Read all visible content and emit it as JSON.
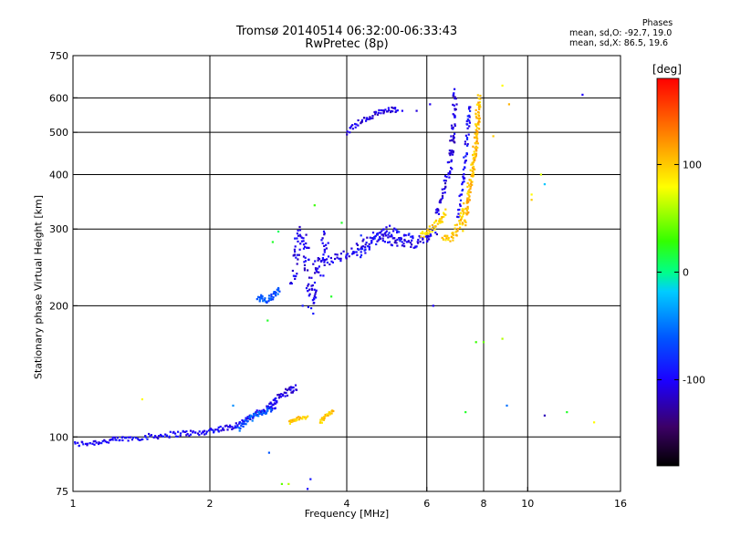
{
  "title_line1": "Tromsø 20140514 06:32:00-06:33:43",
  "title_line2": "RwPretec (8p)",
  "phase_info": {
    "heading": "Phases",
    "line_o": "mean, sd,O: -92.7, 19.0",
    "line_x": "mean, sd,X:  86.5, 19.6"
  },
  "colorbar": {
    "label": "[deg]",
    "ticks": [
      "100",
      "0",
      "-100"
    ],
    "tick_values": [
      100,
      0,
      -100
    ],
    "range": [
      -180,
      180
    ]
  },
  "chart_data": {
    "type": "scatter",
    "xlabel": "Frequency [MHz]",
    "ylabel": "Stationary phase Virtual Height [km]",
    "xscale": "log",
    "yscale": "log",
    "xlim": [
      1,
      16
    ],
    "ylim": [
      75,
      750
    ],
    "x_ticks": [
      "1",
      "2",
      "4",
      "6",
      "8",
      "10",
      "16"
    ],
    "x_tick_values": [
      1,
      2,
      4,
      6,
      8,
      10,
      16
    ],
    "y_ticks": [
      "750",
      "600",
      "500",
      "400",
      "300",
      "200",
      "100",
      "75"
    ],
    "y_tick_values": [
      750,
      600,
      500,
      400,
      300,
      200,
      100,
      75
    ],
    "x_gridlines": [
      2,
      4,
      6,
      8,
      10
    ],
    "y_gridlines": [
      100,
      200,
      300,
      400,
      500,
      600
    ],
    "color_variable": "phase [deg]",
    "traces": [
      {
        "points": [
          [
            1.0,
            96
          ],
          [
            1.1,
            97
          ],
          [
            1.2,
            98
          ],
          [
            1.3,
            99
          ],
          [
            1.45,
            100
          ],
          [
            1.6,
            101
          ],
          [
            1.75,
            102
          ],
          [
            1.9,
            102
          ],
          [
            2.05,
            104
          ],
          [
            2.2,
            105
          ],
          [
            2.35,
            108
          ],
          [
            2.5,
            112
          ],
          [
            2.65,
            116
          ],
          [
            2.8,
            118
          ]
        ],
        "phase": -100,
        "spread": 0.015
      },
      {
        "points": [
          [
            2.3,
            104
          ],
          [
            2.45,
            110
          ],
          [
            2.6,
            114
          ],
          [
            2.75,
            116
          ]
        ],
        "phase": -60,
        "spread": 0.015
      },
      {
        "points": [
          [
            2.7,
            118
          ],
          [
            2.85,
            124
          ],
          [
            3.0,
            128
          ],
          [
            3.1,
            130
          ]
        ],
        "phase": -105,
        "spread": 0.02
      },
      {
        "points": [
          [
            3.0,
            108
          ],
          [
            3.1,
            110
          ],
          [
            3.3,
            111
          ]
        ],
        "phase": 100,
        "spread": 0.01
      },
      {
        "points": [
          [
            3.5,
            108
          ],
          [
            3.6,
            112
          ],
          [
            3.75,
            115
          ]
        ],
        "phase": 100,
        "spread": 0.01
      },
      {
        "points": [
          [
            2.55,
            210
          ],
          [
            2.65,
            205
          ],
          [
            2.75,
            210
          ],
          [
            2.85,
            218
          ]
        ],
        "phase": -60,
        "spread": 0.02
      },
      {
        "points": [
          [
            3.05,
            220
          ],
          [
            3.1,
            260
          ],
          [
            3.15,
            300
          ],
          [
            3.25,
            270
          ],
          [
            3.3,
            230
          ],
          [
            3.35,
            200
          ],
          [
            3.45,
            230
          ],
          [
            3.55,
            260
          ],
          [
            3.6,
            290
          ]
        ],
        "phase": -105,
        "spread": 0.05
      },
      {
        "points": [
          [
            3.4,
            250
          ],
          [
            3.7,
            255
          ],
          [
            4.0,
            262
          ],
          [
            4.3,
            275
          ],
          [
            4.6,
            290
          ],
          [
            4.9,
            285
          ],
          [
            5.2,
            280
          ],
          [
            5.6,
            278
          ],
          [
            6.0,
            285
          ],
          [
            6.3,
            300
          ]
        ],
        "phase": -105,
        "spread": 0.025
      },
      {
        "points": [
          [
            4.2,
            260
          ],
          [
            4.5,
            275
          ],
          [
            4.8,
            300
          ],
          [
            5.2,
            290
          ],
          [
            5.6,
            285
          ]
        ],
        "phase": -95,
        "spread": 0.03
      },
      {
        "points": [
          [
            5.8,
            290
          ],
          [
            6.1,
            300
          ],
          [
            6.4,
            310
          ],
          [
            6.6,
            330
          ]
        ],
        "phase": 95,
        "spread": 0.02
      },
      {
        "points": [
          [
            6.3,
            320
          ],
          [
            6.5,
            360
          ],
          [
            6.7,
            400
          ],
          [
            6.8,
            450
          ],
          [
            6.85,
            500
          ],
          [
            6.9,
            560
          ],
          [
            6.95,
            620
          ]
        ],
        "phase": -110,
        "spread": 0.03
      },
      {
        "points": [
          [
            6.5,
            280
          ],
          [
            6.8,
            290
          ],
          [
            7.0,
            300
          ],
          [
            7.2,
            320
          ],
          [
            7.35,
            350
          ],
          [
            7.5,
            390
          ],
          [
            7.6,
            430
          ],
          [
            7.7,
            480
          ],
          [
            7.75,
            540
          ],
          [
            7.8,
            600
          ]
        ],
        "phase": 100,
        "spread": 0.03
      },
      {
        "points": [
          [
            7.2,
            300
          ],
          [
            7.4,
            340
          ],
          [
            7.55,
            400
          ],
          [
            7.7,
            460
          ],
          [
            7.8,
            520
          ],
          [
            7.85,
            600
          ]
        ],
        "phase": 110,
        "spread": 0.02
      },
      {
        "points": [
          [
            7.0,
            320
          ],
          [
            7.2,
            380
          ],
          [
            7.3,
            440
          ],
          [
            7.4,
            520
          ],
          [
            7.45,
            580
          ]
        ],
        "phase": -95,
        "spread": 0.02
      },
      {
        "points": [
          [
            4.0,
            500
          ],
          [
            4.3,
            530
          ],
          [
            4.6,
            550
          ],
          [
            4.9,
            560
          ],
          [
            5.2,
            565
          ]
        ],
        "phase": -110,
        "spread": 0.015
      }
    ],
    "scattered_points": [
      [
        1.42,
        122,
        80
      ],
      [
        2.75,
        280,
        20
      ],
      [
        2.68,
        185,
        20
      ],
      [
        2.83,
        296,
        10
      ],
      [
        3.7,
        210,
        20
      ],
      [
        2.88,
        78,
        40
      ],
      [
        2.98,
        78,
        60
      ],
      [
        3.4,
        340,
        30
      ],
      [
        3.2,
        200,
        -90
      ],
      [
        5.3,
        560,
        -100
      ],
      [
        5.7,
        560,
        -110
      ],
      [
        6.1,
        580,
        -105
      ],
      [
        3.9,
        310,
        20
      ],
      [
        4.3,
        290,
        -80
      ],
      [
        5.3,
        275,
        -110
      ],
      [
        6.2,
        200,
        -100
      ],
      [
        8.4,
        490,
        100
      ],
      [
        8.8,
        640,
        80
      ],
      [
        9.1,
        580,
        110
      ],
      [
        10.2,
        360,
        80
      ],
      [
        10.2,
        350,
        100
      ],
      [
        10.9,
        380,
        -20
      ],
      [
        10.7,
        400,
        70
      ],
      [
        8.8,
        168,
        60
      ],
      [
        7.7,
        165,
        30
      ],
      [
        8.0,
        165,
        40
      ],
      [
        7.3,
        114,
        20
      ],
      [
        9.0,
        118,
        -50
      ],
      [
        10.9,
        112,
        -120
      ],
      [
        12.2,
        114,
        20
      ],
      [
        14.0,
        108,
        80
      ],
      [
        13.2,
        610,
        -100
      ],
      [
        3.33,
        80,
        -90
      ],
      [
        3.28,
        76,
        -95
      ],
      [
        2.7,
        92,
        -60
      ],
      [
        2.25,
        118,
        -40
      ]
    ]
  }
}
